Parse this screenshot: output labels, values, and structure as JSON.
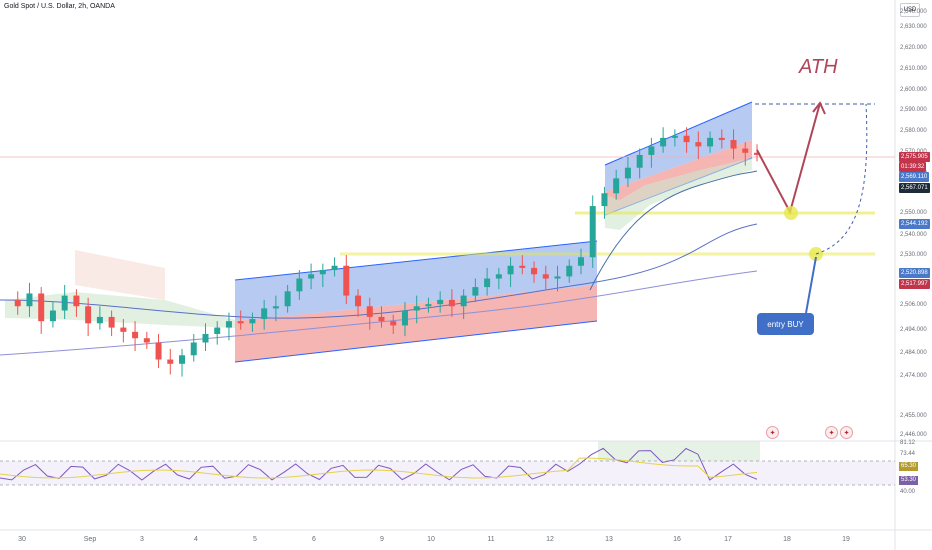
{
  "header": {
    "title": "Gold Spot / U.S. Dollar, 2h, OANDA",
    "currency": "USD"
  },
  "annotations": {
    "ath": "ATH",
    "entry": "entry BUY"
  },
  "colors": {
    "up": "#26a69a",
    "down": "#ef5350",
    "channel_blue": "#2962ff",
    "channel_red": "#f7a8a6",
    "support": "#e6e84a",
    "arrow": "#b0455a",
    "rsi": "#7e57c2"
  },
  "price_badges": [
    {
      "text": "2,575.905",
      "color": "#c2344a"
    },
    {
      "text": "01:39:32",
      "color": "#c2344a"
    },
    {
      "text": "2,569.110",
      "color": "#4a79c9"
    },
    {
      "text": "2,567.071",
      "color": "#1e2c3a"
    },
    {
      "text": "2,544.192",
      "color": "#4a79c9"
    },
    {
      "text": "2,520.898",
      "color": "#4a79c9"
    },
    {
      "text": "2,517.997",
      "color": "#c2344a"
    }
  ],
  "rsi": {
    "ticks": [
      "81.12",
      "73.44",
      "40.00"
    ],
    "badges": [
      "65.30",
      "53.30"
    ]
  },
  "chart_data": {
    "type": "candlestick",
    "symbol": "Gold Spot / U.S. Dollar",
    "interval": "2h",
    "ylim": [
      2446,
      2644
    ],
    "y_ticks": [
      "2,640.000",
      "2,630.000",
      "2,620.000",
      "2,610.000",
      "2,600.000",
      "2,590.000",
      "2,580.000",
      "2,570.000",
      "2,560.000",
      "2,550.000",
      "2,540.000",
      "2,530.000",
      "2,506.000",
      "2,494.000",
      "2,484.000",
      "2,474.000",
      "2,455.000",
      "2,446.000"
    ],
    "x_ticks": [
      "30",
      "Sep",
      "3",
      "4",
      "5",
      "6",
      "9",
      "10",
      "11",
      "12",
      "13",
      "16",
      "17",
      "18",
      "19"
    ],
    "close_path": [
      2508,
      2505,
      2511,
      2498,
      2503,
      2510,
      2505,
      2497,
      2500,
      2495,
      2493,
      2490,
      2488,
      2480,
      2478,
      2482,
      2488,
      2492,
      2495,
      2498,
      2497,
      2499,
      2504,
      2505,
      2512,
      2518,
      2520,
      2522,
      2524,
      2510,
      2505,
      2500,
      2498,
      2496,
      2503,
      2505,
      2506,
      2508,
      2505,
      2510,
      2514,
      2518,
      2520,
      2524,
      2523,
      2520,
      2518,
      2519,
      2524,
      2528,
      2552,
      2558,
      2565,
      2570,
      2576,
      2580,
      2584,
      2585,
      2582,
      2580,
      2584,
      2583,
      2579,
      2577,
      2576
    ],
    "levels": {
      "ath_target": 2601,
      "support_1": 2548,
      "support_2": 2532,
      "current": 2575.905
    }
  }
}
